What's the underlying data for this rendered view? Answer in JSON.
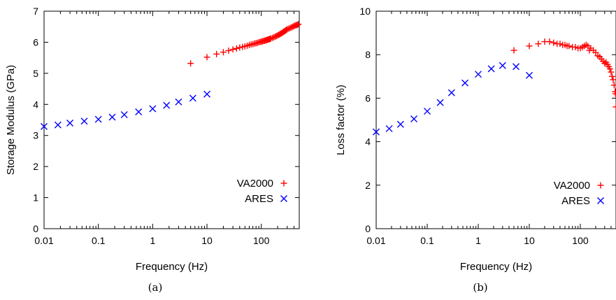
{
  "chart_data": [
    {
      "type": "scatter",
      "caption": "(a)",
      "xlabel": "Frequency (Hz)",
      "ylabel": "Storage Modulus (GPa)",
      "xscale": "log",
      "xlim": [
        0.01,
        500
      ],
      "ylim": [
        0,
        7
      ],
      "xticks": [
        "0.01",
        "0.1",
        "1",
        "10",
        "100"
      ],
      "yticks": [
        "0",
        "1",
        "2",
        "3",
        "4",
        "5",
        "6",
        "7"
      ],
      "legend_position": "bottom-right",
      "series": [
        {
          "name": "VA2000",
          "marker": "plus",
          "color": "#ff0000",
          "x": [
            5,
            10,
            15,
            20,
            25,
            30,
            35,
            40,
            45,
            50,
            55,
            60,
            65,
            70,
            75,
            80,
            85,
            90,
            95,
            100,
            105,
            110,
            115,
            120,
            125,
            130,
            135,
            140,
            145,
            150,
            160,
            170,
            180,
            190,
            200,
            210,
            220,
            230,
            240,
            250,
            260,
            270,
            280,
            290,
            300,
            320,
            340,
            360,
            380,
            400,
            420,
            440,
            460,
            480
          ],
          "y": [
            5.32,
            5.52,
            5.62,
            5.68,
            5.73,
            5.77,
            5.8,
            5.83,
            5.85,
            5.87,
            5.89,
            5.91,
            5.93,
            5.94,
            5.96,
            5.97,
            5.98,
            6.0,
            6.01,
            6.02,
            6.03,
            6.04,
            6.05,
            6.06,
            6.07,
            6.08,
            6.09,
            6.1,
            6.11,
            6.12,
            6.14,
            6.16,
            6.18,
            6.2,
            6.22,
            6.24,
            6.26,
            6.28,
            6.3,
            6.32,
            6.34,
            6.36,
            6.38,
            6.4,
            6.42,
            6.44,
            6.46,
            6.48,
            6.5,
            6.52,
            6.54,
            6.55,
            6.56,
            6.58
          ]
        },
        {
          "name": "ARES",
          "marker": "cross",
          "color": "#0000ff",
          "x": [
            0.01,
            0.018,
            0.03,
            0.055,
            0.1,
            0.18,
            0.3,
            0.55,
            1,
            1.8,
            3,
            5.5,
            10
          ],
          "y": [
            3.29,
            3.34,
            3.4,
            3.46,
            3.52,
            3.59,
            3.67,
            3.76,
            3.86,
            3.97,
            4.08,
            4.2,
            4.33
          ]
        }
      ]
    },
    {
      "type": "scatter",
      "caption": "(b)",
      "xlabel": "Frequency (Hz)",
      "ylabel": "Loss factor (%)",
      "xscale": "log",
      "xlim": [
        0.01,
        500
      ],
      "ylim": [
        0,
        10
      ],
      "xticks": [
        "0.01",
        "0.1",
        "1",
        "10",
        "100"
      ],
      "yticks": [
        "0",
        "2",
        "4",
        "6",
        "8",
        "10"
      ],
      "legend_position": "bottom-right",
      "series": [
        {
          "name": "VA2000",
          "marker": "plus",
          "color": "#ff0000",
          "x": [
            5,
            10,
            15,
            20,
            25,
            30,
            35,
            40,
            45,
            50,
            55,
            60,
            70,
            80,
            90,
            100,
            110,
            120,
            130,
            140,
            150,
            160,
            180,
            200,
            220,
            240,
            260,
            280,
            300,
            320,
            340,
            360,
            380,
            400,
            420,
            440,
            460,
            480,
            490,
            500
          ],
          "y": [
            8.2,
            8.4,
            8.5,
            8.6,
            8.6,
            8.55,
            8.5,
            8.5,
            8.45,
            8.45,
            8.4,
            8.4,
            8.35,
            8.35,
            8.3,
            8.3,
            8.35,
            8.4,
            8.45,
            8.4,
            8.2,
            8.3,
            8.2,
            8.1,
            7.95,
            7.9,
            7.8,
            7.7,
            7.6,
            7.65,
            7.55,
            7.45,
            7.35,
            7.2,
            7.0,
            6.85,
            6.6,
            6.3,
            6.2,
            5.6
          ]
        },
        {
          "name": "ARES",
          "marker": "cross",
          "color": "#0000ff",
          "x": [
            0.01,
            0.018,
            0.03,
            0.055,
            0.1,
            0.18,
            0.3,
            0.55,
            1,
            1.8,
            3,
            5.5,
            10
          ],
          "y": [
            4.45,
            4.6,
            4.8,
            5.05,
            5.4,
            5.8,
            6.25,
            6.7,
            7.1,
            7.35,
            7.5,
            7.45,
            7.05
          ]
        }
      ]
    }
  ]
}
